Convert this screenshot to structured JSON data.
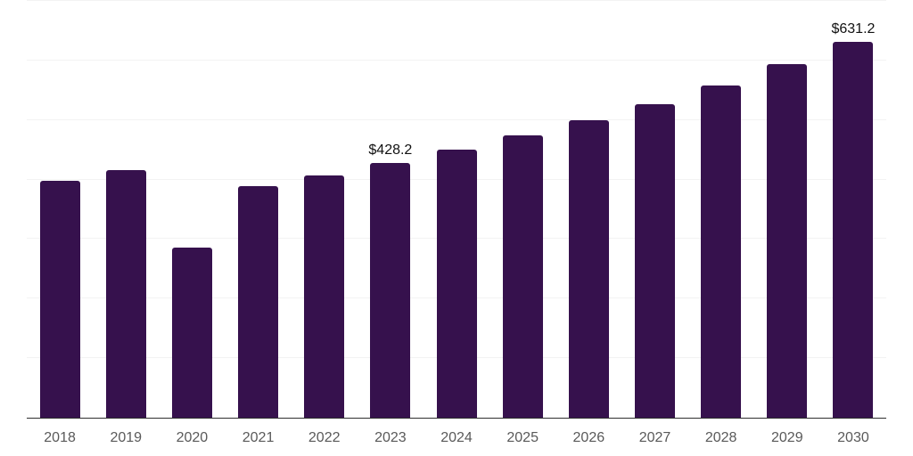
{
  "chart_data": {
    "type": "bar",
    "title": "",
    "xlabel": "",
    "ylabel": "",
    "categories": [
      "2018",
      "2019",
      "2020",
      "2021",
      "2022",
      "2023",
      "2024",
      "2025",
      "2026",
      "2027",
      "2028",
      "2029",
      "2030"
    ],
    "values": [
      398.1,
      415.9,
      285.1,
      388.8,
      407.5,
      428.2,
      450.7,
      474.0,
      499.0,
      526.8,
      558.2,
      593.5,
      631.2
    ],
    "data_labels": [
      {
        "category": "2023",
        "text": "$428.2"
      },
      {
        "category": "2030",
        "text": "$631.2"
      }
    ],
    "ylim": [
      0,
      700
    ],
    "gridline_step": 100,
    "grid": true,
    "legend": false,
    "y_axis_tick_labels_visible": false
  },
  "colors": {
    "bar": "#36114d",
    "gridline": "#f3f3f3",
    "axis_line": "#2e2e2e",
    "tick_label": "#595959",
    "data_label": "#111111",
    "background": "#ffffff"
  }
}
